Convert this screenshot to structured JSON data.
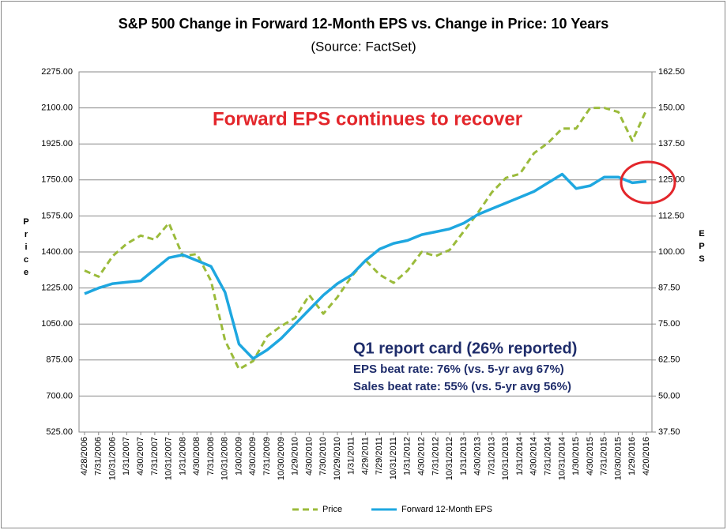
{
  "chart_data": {
    "type": "line",
    "title": "S&P 500 Change in Forward 12-Month EPS vs. Change in Price: 10 Years",
    "subtitle": "(Source: FactSet)",
    "y_label": "Price",
    "y2_label": "EPS",
    "annotations": [
      "Forward EPS continues to recover",
      "Q1 report card (26% reported)",
      "EPS beat rate: 76% (vs. 5-yr avg 67%)",
      "Sales beat rate: 55% (vs. 5-yr avg 56%)"
    ],
    "categories": [
      "4/28/2006",
      "7/31/2006",
      "10/31/2006",
      "1/31/2007",
      "4/30/2007",
      "7/31/2007",
      "10/31/2007",
      "1/31/2008",
      "4/30/2008",
      "7/31/2008",
      "10/31/2008",
      "1/30/2009",
      "4/30/2009",
      "7/31/2009",
      "10/30/2009",
      "1/29/2010",
      "4/30/2010",
      "7/30/2010",
      "10/29/2010",
      "1/31/2011",
      "4/29/2011",
      "7/29/2011",
      "10/31/2011",
      "1/31/2012",
      "4/30/2012",
      "7/31/2012",
      "10/31/2012",
      "1/31/2013",
      "4/30/2013",
      "7/31/2013",
      "10/31/2013",
      "1/31/2014",
      "4/30/2014",
      "7/31/2014",
      "10/31/2014",
      "1/30/2015",
      "4/30/2015",
      "7/31/2015",
      "10/30/2015",
      "1/29/2016",
      "4/20/2016"
    ],
    "series": [
      {
        "name": "Price",
        "color": "#9bbb3b",
        "dashed": true,
        "values": [
          1310,
          1280,
          1380,
          1440,
          1480,
          1460,
          1540,
          1380,
          1390,
          1260,
          970,
          830,
          870,
          990,
          1040,
          1080,
          1190,
          1100,
          1180,
          1280,
          1360,
          1290,
          1250,
          1310,
          1400,
          1380,
          1410,
          1500,
          1590,
          1690,
          1760,
          1780,
          1880,
          1930,
          2000,
          2000,
          2100,
          2100,
          2080,
          1940,
          2090
        ]
      },
      {
        "name": "Forward 12-Month EPS",
        "color": "#1ea7e0",
        "axis": "y2",
        "values": [
          85.5,
          87.5,
          89,
          89.5,
          90,
          94,
          98,
          99,
          97,
          95,
          86,
          68,
          63,
          66,
          70,
          75,
          80,
          85,
          89,
          92,
          97,
          101,
          103,
          104,
          106,
          107,
          108,
          110,
          113,
          115,
          117,
          119,
          121,
          124,
          127,
          122,
          123,
          126,
          126,
          124,
          124.5
        ]
      }
    ],
    "ylim": [
      525,
      2275
    ],
    "yticks": [
      {
        "value": 525,
        "label": "525.00"
      },
      {
        "value": 700,
        "label": "700.00"
      },
      {
        "value": 875,
        "label": "875.00"
      },
      {
        "value": 1050,
        "label": "1050.00"
      },
      {
        "value": 1225,
        "label": "1225.00"
      },
      {
        "value": 1400,
        "label": "1400.00"
      },
      {
        "value": 1575,
        "label": "1575.00"
      },
      {
        "value": 1750,
        "label": "1750.00"
      },
      {
        "value": 1925,
        "label": "1925.00"
      },
      {
        "value": 2100,
        "label": "2100.00"
      },
      {
        "value": 2275,
        "label": "2275.00"
      }
    ],
    "y2lim": [
      37.5,
      162.5
    ],
    "y2ticks": [
      {
        "value": 37.5,
        "label": "37.50"
      },
      {
        "value": 50,
        "label": "50.00"
      },
      {
        "value": 62.5,
        "label": "62.50"
      },
      {
        "value": 75,
        "label": "75.00"
      },
      {
        "value": 87.5,
        "label": "87.50"
      },
      {
        "value": 100,
        "label": "100.00"
      },
      {
        "value": 112.5,
        "label": "112.50"
      },
      {
        "value": 125,
        "label": "125.00"
      },
      {
        "value": 137.5,
        "label": "137.50"
      },
      {
        "value": 150,
        "label": "150.00"
      },
      {
        "value": 162.5,
        "label": "162.50"
      }
    ],
    "grid": true,
    "legend": "bottom"
  }
}
